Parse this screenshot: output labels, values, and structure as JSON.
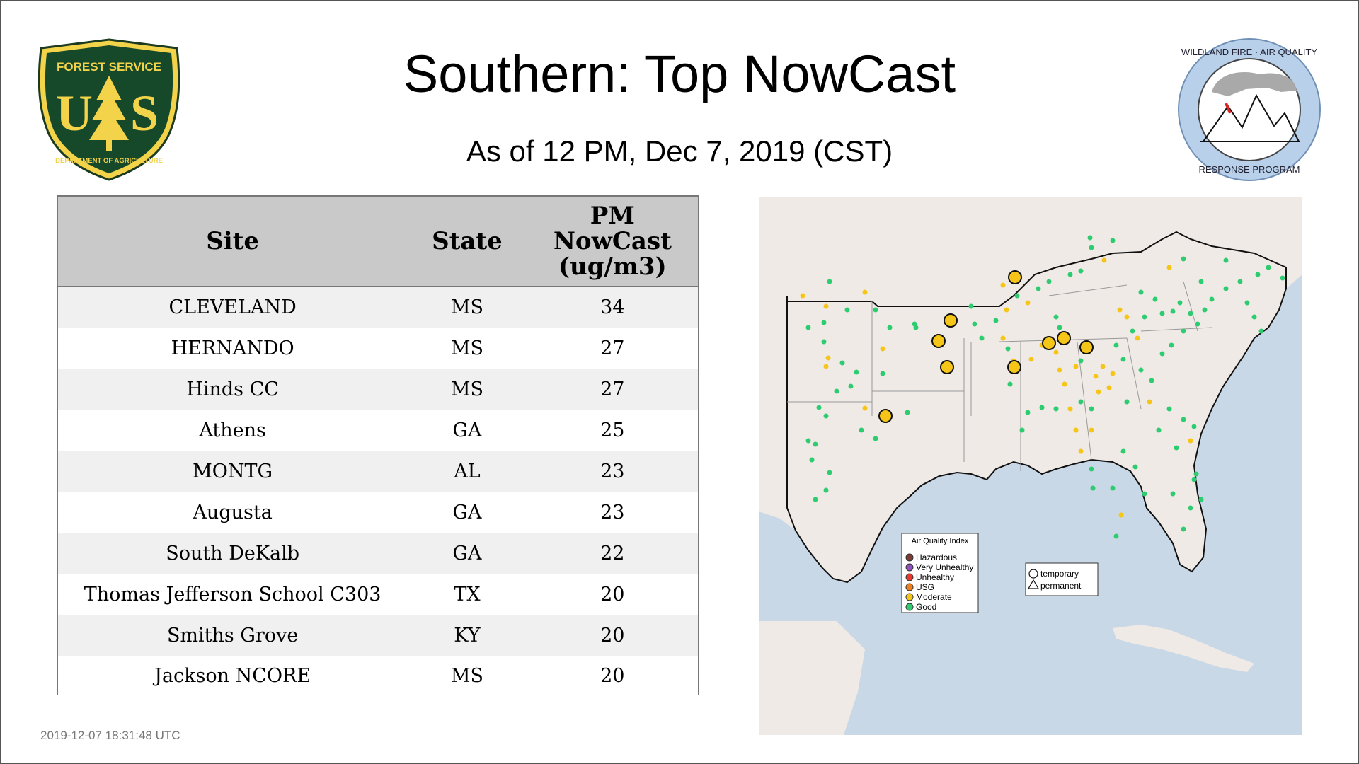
{
  "header": {
    "title": "Southern: Top NowCast",
    "subtitle": "As of 12 PM, Dec  7, 2019 (CST)"
  },
  "logos": {
    "forest_service": {
      "top_text": "FOREST SERVICE",
      "letters": "US",
      "bottom_text": "DEPARTMENT OF AGRICULTURE"
    },
    "wildland_fire": {
      "top_text": "WILDLAND FIRE · AIR QUALITY",
      "bottom_text": "RESPONSE PROGRAM"
    }
  },
  "table": {
    "headers": [
      "Site",
      "State",
      "PM NowCast (ug/m3)"
    ],
    "header_lines": {
      "pm": [
        "PM",
        "NowCast",
        "(ug/m3)"
      ]
    },
    "rows": [
      {
        "site": "CLEVELAND",
        "state": "MS",
        "value": "34"
      },
      {
        "site": "HERNANDO",
        "state": "MS",
        "value": "27"
      },
      {
        "site": "Hinds CC",
        "state": "MS",
        "value": "27"
      },
      {
        "site": "Athens",
        "state": "GA",
        "value": "25"
      },
      {
        "site": "MONTG",
        "state": "AL",
        "value": "23"
      },
      {
        "site": "Augusta",
        "state": "GA",
        "value": "23"
      },
      {
        "site": "South DeKalb",
        "state": "GA",
        "value": "22"
      },
      {
        "site": "Thomas Jefferson School C303",
        "state": "TX",
        "value": "20"
      },
      {
        "site": "Smiths Grove",
        "state": "KY",
        "value": "20"
      },
      {
        "site": "Jackson NCORE",
        "state": "MS",
        "value": "20"
      }
    ]
  },
  "map": {
    "legend_aqi": {
      "title": "Air Quality Index",
      "items": [
        {
          "label": "Hazardous",
          "color": "#7e3b32"
        },
        {
          "label": "Very Unhealthy",
          "color": "#8f4fbf"
        },
        {
          "label": "Unhealthy",
          "color": "#e8382b"
        },
        {
          "label": "USG",
          "color": "#f07f1e"
        },
        {
          "label": "Moderate",
          "color": "#f5c518"
        },
        {
          "label": "Good",
          "color": "#2ecc71"
        }
      ]
    },
    "legend_type": {
      "items": [
        {
          "label": "temporary",
          "shape": "circle"
        },
        {
          "label": "permanent",
          "shape": "triangle"
        }
      ]
    },
    "colors": {
      "water": "#c9d8e6",
      "land": "#efeae6",
      "good": "#2ecc71",
      "moderate": "#f5c518"
    }
  },
  "footer": {
    "timestamp": "2019-12-07 18:31:48 UTC"
  }
}
